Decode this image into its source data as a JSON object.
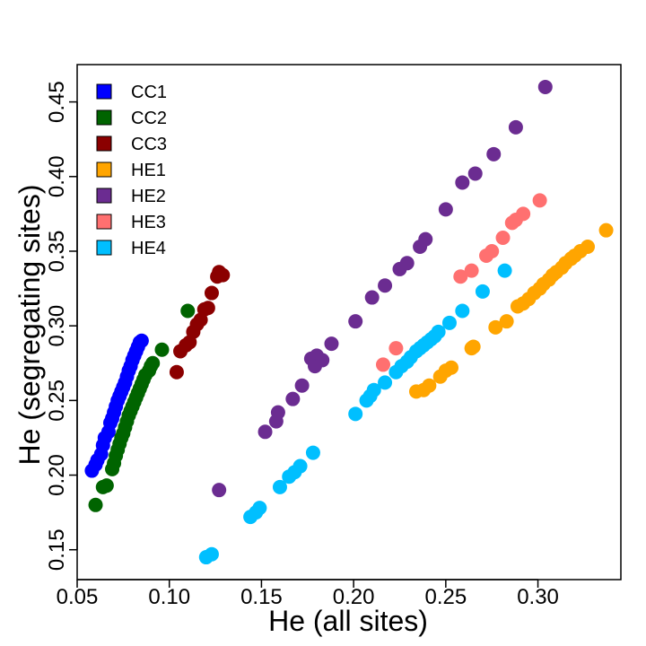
{
  "chart_data": {
    "type": "scatter",
    "xlabel": "He (all sites)",
    "ylabel": "He (segregating sites)",
    "xlim": [
      0.05,
      0.345
    ],
    "ylim": [
      0.13,
      0.475
    ],
    "xticks": [
      "0.05",
      "0.10",
      "0.15",
      "0.20",
      "0.25",
      "0.30"
    ],
    "yticks": [
      "0.15",
      "0.20",
      "0.25",
      "0.30",
      "0.35",
      "0.40",
      "0.45"
    ],
    "legend_position": "top-left",
    "series": [
      {
        "name": "CC1",
        "color": "#0000ff",
        "points": [
          [
            0.058,
            0.203
          ],
          [
            0.06,
            0.207
          ],
          [
            0.061,
            0.21
          ],
          [
            0.063,
            0.214
          ],
          [
            0.064,
            0.22
          ],
          [
            0.065,
            0.225
          ],
          [
            0.067,
            0.229
          ],
          [
            0.068,
            0.235
          ],
          [
            0.069,
            0.238
          ],
          [
            0.07,
            0.242
          ],
          [
            0.071,
            0.246
          ],
          [
            0.072,
            0.25
          ],
          [
            0.073,
            0.253
          ],
          [
            0.074,
            0.256
          ],
          [
            0.075,
            0.259
          ],
          [
            0.076,
            0.262
          ],
          [
            0.077,
            0.266
          ],
          [
            0.078,
            0.27
          ],
          [
            0.079,
            0.273
          ],
          [
            0.08,
            0.277
          ],
          [
            0.081,
            0.28
          ],
          [
            0.082,
            0.283
          ],
          [
            0.083,
            0.286
          ],
          [
            0.084,
            0.289
          ],
          [
            0.085,
            0.29
          ]
        ]
      },
      {
        "name": "CC2",
        "color": "#006400",
        "points": [
          [
            0.06,
            0.18
          ],
          [
            0.064,
            0.192
          ],
          [
            0.066,
            0.193
          ],
          [
            0.069,
            0.204
          ],
          [
            0.07,
            0.208
          ],
          [
            0.071,
            0.213
          ],
          [
            0.072,
            0.217
          ],
          [
            0.073,
            0.221
          ],
          [
            0.074,
            0.225
          ],
          [
            0.075,
            0.228
          ],
          [
            0.076,
            0.232
          ],
          [
            0.077,
            0.236
          ],
          [
            0.078,
            0.24
          ],
          [
            0.079,
            0.243
          ],
          [
            0.08,
            0.246
          ],
          [
            0.081,
            0.249
          ],
          [
            0.082,
            0.252
          ],
          [
            0.083,
            0.255
          ],
          [
            0.084,
            0.258
          ],
          [
            0.085,
            0.261
          ],
          [
            0.086,
            0.264
          ],
          [
            0.087,
            0.267
          ],
          [
            0.089,
            0.27
          ],
          [
            0.09,
            0.273
          ],
          [
            0.091,
            0.275
          ],
          [
            0.096,
            0.284
          ],
          [
            0.11,
            0.31
          ]
        ]
      },
      {
        "name": "CC3",
        "color": "#8b0000",
        "points": [
          [
            0.104,
            0.269
          ],
          [
            0.106,
            0.283
          ],
          [
            0.109,
            0.287
          ],
          [
            0.111,
            0.289
          ],
          [
            0.113,
            0.296
          ],
          [
            0.115,
            0.301
          ],
          [
            0.117,
            0.304
          ],
          [
            0.119,
            0.311
          ],
          [
            0.121,
            0.312
          ],
          [
            0.123,
            0.322
          ],
          [
            0.126,
            0.333
          ],
          [
            0.127,
            0.336
          ],
          [
            0.129,
            0.334
          ]
        ]
      },
      {
        "name": "HE1",
        "color": "#ffa500",
        "points": [
          [
            0.234,
            0.256
          ],
          [
            0.238,
            0.257
          ],
          [
            0.241,
            0.26
          ],
          [
            0.247,
            0.266
          ],
          [
            0.25,
            0.27
          ],
          [
            0.253,
            0.272
          ],
          [
            0.264,
            0.285
          ],
          [
            0.265,
            0.286
          ],
          [
            0.277,
            0.299
          ],
          [
            0.283,
            0.303
          ],
          [
            0.289,
            0.313
          ],
          [
            0.292,
            0.315
          ],
          [
            0.295,
            0.318
          ],
          [
            0.298,
            0.322
          ],
          [
            0.301,
            0.325
          ],
          [
            0.303,
            0.328
          ],
          [
            0.306,
            0.331
          ],
          [
            0.308,
            0.334
          ],
          [
            0.31,
            0.336
          ],
          [
            0.313,
            0.339
          ],
          [
            0.315,
            0.342
          ],
          [
            0.318,
            0.345
          ],
          [
            0.32,
            0.347
          ],
          [
            0.323,
            0.35
          ],
          [
            0.327,
            0.353
          ],
          [
            0.337,
            0.364
          ]
        ]
      },
      {
        "name": "HE2",
        "color": "#6b2c91",
        "points": [
          [
            0.127,
            0.19
          ],
          [
            0.152,
            0.229
          ],
          [
            0.158,
            0.236
          ],
          [
            0.159,
            0.242
          ],
          [
            0.167,
            0.251
          ],
          [
            0.172,
            0.26
          ],
          [
            0.177,
            0.278
          ],
          [
            0.18,
            0.28
          ],
          [
            0.179,
            0.273
          ],
          [
            0.183,
            0.277
          ],
          [
            0.188,
            0.288
          ],
          [
            0.201,
            0.303
          ],
          [
            0.21,
            0.319
          ],
          [
            0.217,
            0.327
          ],
          [
            0.225,
            0.338
          ],
          [
            0.229,
            0.342
          ],
          [
            0.236,
            0.353
          ],
          [
            0.239,
            0.358
          ],
          [
            0.25,
            0.378
          ],
          [
            0.259,
            0.396
          ],
          [
            0.266,
            0.402
          ],
          [
            0.276,
            0.415
          ],
          [
            0.288,
            0.433
          ],
          [
            0.304,
            0.46
          ]
        ]
      },
      {
        "name": "HE3",
        "color": "#ff7070",
        "points": [
          [
            0.216,
            0.274
          ],
          [
            0.223,
            0.285
          ],
          [
            0.258,
            0.333
          ],
          [
            0.264,
            0.337
          ],
          [
            0.272,
            0.347
          ],
          [
            0.275,
            0.35
          ],
          [
            0.281,
            0.359
          ],
          [
            0.286,
            0.369
          ],
          [
            0.288,
            0.371
          ],
          [
            0.292,
            0.375
          ],
          [
            0.301,
            0.384
          ]
        ]
      },
      {
        "name": "HE4",
        "color": "#00bfff",
        "points": [
          [
            0.12,
            0.145
          ],
          [
            0.123,
            0.147
          ],
          [
            0.144,
            0.172
          ],
          [
            0.147,
            0.175
          ],
          [
            0.149,
            0.178
          ],
          [
            0.16,
            0.192
          ],
          [
            0.165,
            0.199
          ],
          [
            0.168,
            0.202
          ],
          [
            0.171,
            0.206
          ],
          [
            0.178,
            0.215
          ],
          [
            0.201,
            0.241
          ],
          [
            0.207,
            0.25
          ],
          [
            0.209,
            0.253
          ],
          [
            0.211,
            0.257
          ],
          [
            0.217,
            0.262
          ],
          [
            0.223,
            0.269
          ],
          [
            0.226,
            0.273
          ],
          [
            0.229,
            0.276
          ],
          [
            0.231,
            0.279
          ],
          [
            0.234,
            0.283
          ],
          [
            0.236,
            0.285
          ],
          [
            0.238,
            0.287
          ],
          [
            0.24,
            0.289
          ],
          [
            0.242,
            0.291
          ],
          [
            0.244,
            0.293
          ],
          [
            0.246,
            0.296
          ],
          [
            0.252,
            0.302
          ],
          [
            0.259,
            0.31
          ],
          [
            0.27,
            0.323
          ],
          [
            0.282,
            0.337
          ]
        ]
      }
    ]
  }
}
